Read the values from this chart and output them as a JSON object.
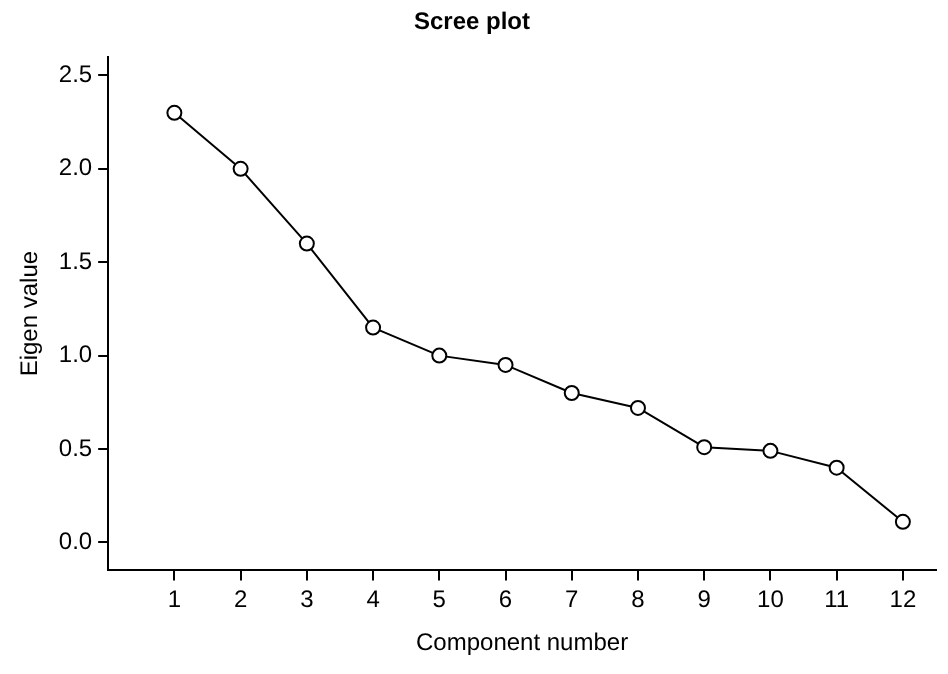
{
  "chart_data": {
    "type": "line",
    "title": "Scree plot",
    "xlabel": "Component number",
    "ylabel": "Eigen value",
    "x": [
      1,
      2,
      3,
      4,
      5,
      6,
      7,
      8,
      9,
      10,
      11,
      12
    ],
    "series": [
      {
        "color": "#000000",
        "values": [
          2.3,
          2.0,
          1.6,
          1.15,
          1.0,
          0.95,
          0.8,
          0.72,
          0.51,
          0.49,
          0.4,
          0.11
        ]
      }
    ],
    "xlim": [
      0,
      12.5
    ],
    "xticks": [
      1,
      2,
      3,
      4,
      5,
      6,
      7,
      8,
      9,
      10,
      11,
      12
    ],
    "ylim": [
      -0.15,
      2.6
    ],
    "yticks": [
      {
        "value": 0,
        "label": "0.0"
      },
      {
        "value": 0.5,
        "label": "0.5"
      },
      {
        "value": 1,
        "label": "1.0"
      },
      {
        "value": 1.5,
        "label": "1.5"
      },
      {
        "value": 2,
        "label": "2.0"
      },
      {
        "value": 2.5,
        "label": "2.5"
      }
    ],
    "grid": false,
    "legend": false,
    "marker": "circle",
    "line_style": "solid"
  }
}
